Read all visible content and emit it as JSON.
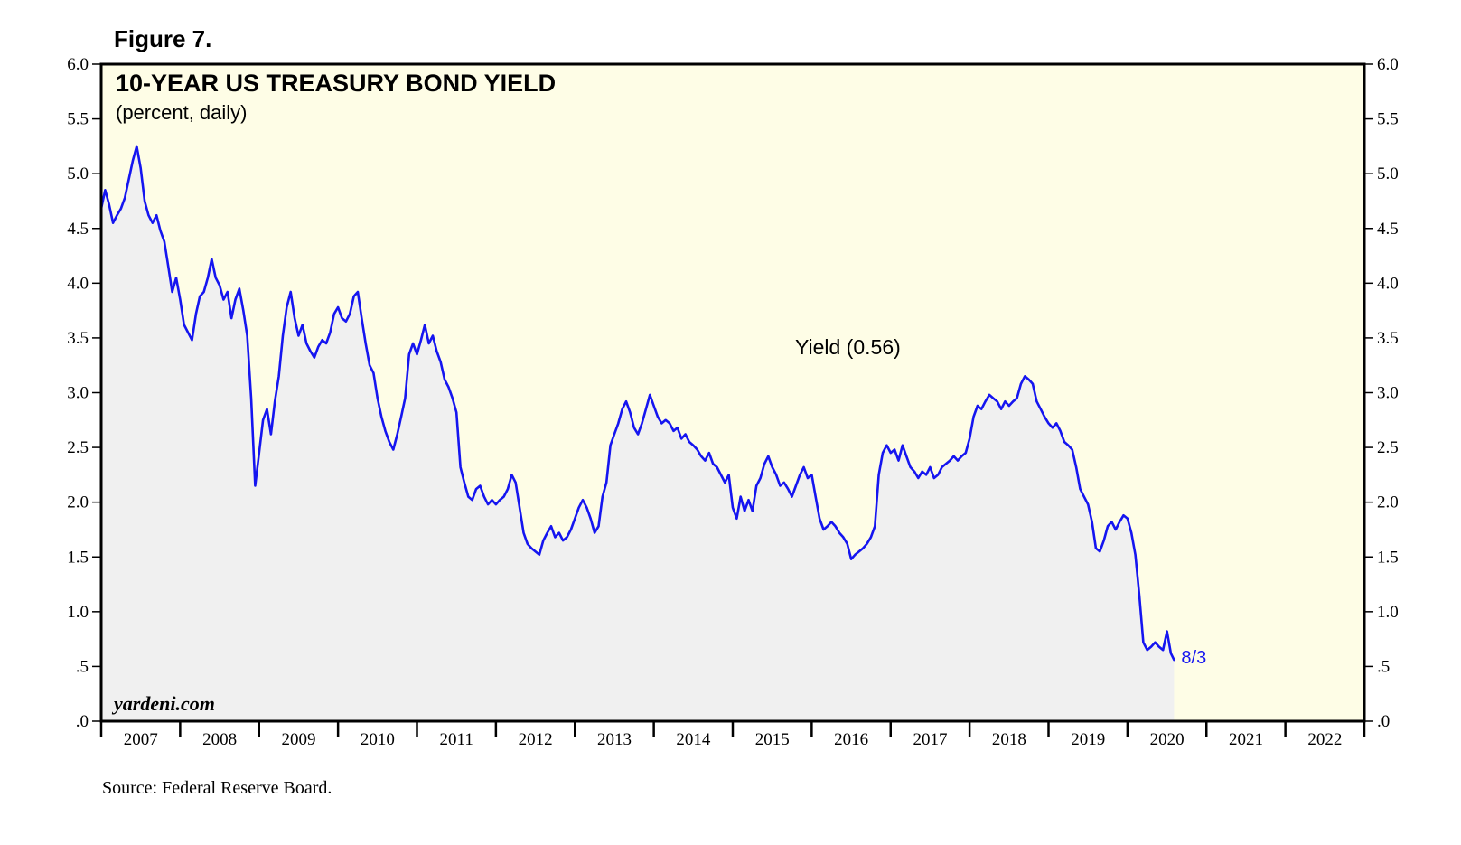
{
  "figure_label": "Figure 7.",
  "source": "Source: Federal Reserve Board.",
  "colors": {
    "plot_background": "#fefde6",
    "area_fill": "#f0f0f0",
    "line": "#1515f0",
    "frame": "#000000",
    "text": "#000000",
    "date_label": "#1515f0"
  },
  "chart_data": {
    "type": "line",
    "title": "10-YEAR US TREASURY BOND YIELD",
    "subtitle": "(percent, daily)",
    "watermark": "yardeni.com",
    "series_label": "Yield (0.56)",
    "end_label": "8/3",
    "ylim": [
      0,
      6
    ],
    "y_ticks": [
      ".0",
      ".5",
      "1.0",
      "1.5",
      "2.0",
      "2.5",
      "3.0",
      "3.5",
      "4.0",
      "4.5",
      "5.0",
      "5.5",
      "6.0"
    ],
    "x_range": [
      2007,
      2023
    ],
    "x_tick_labels": [
      "2007",
      "2008",
      "2009",
      "2010",
      "2011",
      "2012",
      "2013",
      "2014",
      "2015",
      "2016",
      "2017",
      "2018",
      "2019",
      "2020",
      "2021",
      "2022"
    ],
    "shaded": "area under line",
    "series": [
      {
        "name": "10-Year Treasury Yield",
        "x": [
          2007.0,
          2007.05,
          2007.1,
          2007.15,
          2007.2,
          2007.25,
          2007.3,
          2007.35,
          2007.4,
          2007.45,
          2007.5,
          2007.55,
          2007.6,
          2007.65,
          2007.7,
          2007.75,
          2007.8,
          2007.85,
          2007.9,
          2007.95,
          2008.0,
          2008.05,
          2008.1,
          2008.15,
          2008.2,
          2008.25,
          2008.3,
          2008.35,
          2008.4,
          2008.45,
          2008.5,
          2008.55,
          2008.6,
          2008.65,
          2008.7,
          2008.75,
          2008.8,
          2008.85,
          2008.9,
          2008.95,
          2009.0,
          2009.05,
          2009.1,
          2009.15,
          2009.2,
          2009.25,
          2009.3,
          2009.35,
          2009.4,
          2009.45,
          2009.5,
          2009.55,
          2009.6,
          2009.65,
          2009.7,
          2009.75,
          2009.8,
          2009.85,
          2009.9,
          2009.95,
          2010.0,
          2010.05,
          2010.1,
          2010.15,
          2010.2,
          2010.25,
          2010.3,
          2010.35,
          2010.4,
          2010.45,
          2010.5,
          2010.55,
          2010.6,
          2010.65,
          2010.7,
          2010.75,
          2010.8,
          2010.85,
          2010.9,
          2010.95,
          2011.0,
          2011.05,
          2011.1,
          2011.15,
          2011.2,
          2011.25,
          2011.3,
          2011.35,
          2011.4,
          2011.45,
          2011.5,
          2011.55,
          2011.6,
          2011.65,
          2011.7,
          2011.75,
          2011.8,
          2011.85,
          2011.9,
          2011.95,
          2012.0,
          2012.05,
          2012.1,
          2012.15,
          2012.2,
          2012.25,
          2012.3,
          2012.35,
          2012.4,
          2012.45,
          2012.5,
          2012.55,
          2012.6,
          2012.65,
          2012.7,
          2012.75,
          2012.8,
          2012.85,
          2012.9,
          2012.95,
          2013.0,
          2013.05,
          2013.1,
          2013.15,
          2013.2,
          2013.25,
          2013.3,
          2013.35,
          2013.4,
          2013.45,
          2013.5,
          2013.55,
          2013.6,
          2013.65,
          2013.7,
          2013.75,
          2013.8,
          2013.85,
          2013.9,
          2013.95,
          2014.0,
          2014.05,
          2014.1,
          2014.15,
          2014.2,
          2014.25,
          2014.3,
          2014.35,
          2014.4,
          2014.45,
          2014.5,
          2014.55,
          2014.6,
          2014.65,
          2014.7,
          2014.75,
          2014.8,
          2014.85,
          2014.9,
          2014.95,
          2015.0,
          2015.05,
          2015.1,
          2015.15,
          2015.2,
          2015.25,
          2015.3,
          2015.35,
          2015.4,
          2015.45,
          2015.5,
          2015.55,
          2015.6,
          2015.65,
          2015.7,
          2015.75,
          2015.8,
          2015.85,
          2015.9,
          2015.95,
          2016.0,
          2016.05,
          2016.1,
          2016.15,
          2016.2,
          2016.25,
          2016.3,
          2016.35,
          2016.4,
          2016.45,
          2016.5,
          2016.55,
          2016.6,
          2016.65,
          2016.7,
          2016.75,
          2016.8,
          2016.85,
          2016.9,
          2016.95,
          2017.0,
          2017.05,
          2017.1,
          2017.15,
          2017.2,
          2017.25,
          2017.3,
          2017.35,
          2017.4,
          2017.45,
          2017.5,
          2017.55,
          2017.6,
          2017.65,
          2017.7,
          2017.75,
          2017.8,
          2017.85,
          2017.9,
          2017.95,
          2018.0,
          2018.05,
          2018.1,
          2018.15,
          2018.2,
          2018.25,
          2018.3,
          2018.35,
          2018.4,
          2018.45,
          2018.5,
          2018.55,
          2018.6,
          2018.65,
          2018.7,
          2018.75,
          2018.8,
          2018.85,
          2018.9,
          2018.95,
          2019.0,
          2019.05,
          2019.1,
          2019.15,
          2019.2,
          2019.25,
          2019.3,
          2019.35,
          2019.4,
          2019.45,
          2019.5,
          2019.55,
          2019.6,
          2019.65,
          2019.7,
          2019.75,
          2019.8,
          2019.85,
          2019.9,
          2019.95,
          2020.0,
          2020.05,
          2020.1,
          2020.15,
          2020.2,
          2020.25,
          2020.3,
          2020.35,
          2020.4,
          2020.45,
          2020.5,
          2020.55,
          2020.59
        ],
        "values": [
          4.68,
          4.85,
          4.72,
          4.55,
          4.62,
          4.68,
          4.78,
          4.95,
          5.12,
          5.25,
          5.05,
          4.75,
          4.62,
          4.55,
          4.62,
          4.48,
          4.38,
          4.15,
          3.92,
          4.05,
          3.85,
          3.62,
          3.55,
          3.48,
          3.72,
          3.88,
          3.92,
          4.05,
          4.22,
          4.05,
          3.98,
          3.85,
          3.92,
          3.68,
          3.85,
          3.95,
          3.75,
          3.52,
          2.95,
          2.15,
          2.45,
          2.75,
          2.85,
          2.62,
          2.92,
          3.15,
          3.52,
          3.78,
          3.92,
          3.68,
          3.52,
          3.62,
          3.45,
          3.38,
          3.32,
          3.42,
          3.48,
          3.45,
          3.55,
          3.72,
          3.78,
          3.68,
          3.65,
          3.72,
          3.88,
          3.92,
          3.68,
          3.45,
          3.25,
          3.18,
          2.95,
          2.78,
          2.65,
          2.55,
          2.48,
          2.62,
          2.78,
          2.95,
          3.35,
          3.45,
          3.35,
          3.48,
          3.62,
          3.45,
          3.52,
          3.38,
          3.28,
          3.12,
          3.05,
          2.95,
          2.82,
          2.32,
          2.18,
          2.05,
          2.02,
          2.12,
          2.15,
          2.05,
          1.98,
          2.02,
          1.98,
          2.02,
          2.05,
          2.12,
          2.25,
          2.18,
          1.95,
          1.72,
          1.62,
          1.58,
          1.55,
          1.52,
          1.65,
          1.72,
          1.78,
          1.68,
          1.72,
          1.65,
          1.68,
          1.75,
          1.85,
          1.95,
          2.02,
          1.95,
          1.85,
          1.72,
          1.78,
          2.05,
          2.18,
          2.52,
          2.62,
          2.72,
          2.85,
          2.92,
          2.82,
          2.68,
          2.62,
          2.72,
          2.85,
          2.98,
          2.88,
          2.78,
          2.72,
          2.75,
          2.72,
          2.65,
          2.68,
          2.58,
          2.62,
          2.55,
          2.52,
          2.48,
          2.42,
          2.38,
          2.45,
          2.35,
          2.32,
          2.25,
          2.18,
          2.25,
          1.95,
          1.85,
          2.05,
          1.92,
          2.02,
          1.92,
          2.15,
          2.22,
          2.35,
          2.42,
          2.32,
          2.25,
          2.15,
          2.18,
          2.12,
          2.05,
          2.15,
          2.25,
          2.32,
          2.22,
          2.25,
          2.05,
          1.85,
          1.75,
          1.78,
          1.82,
          1.78,
          1.72,
          1.68,
          1.62,
          1.48,
          1.52,
          1.55,
          1.58,
          1.62,
          1.68,
          1.78,
          2.25,
          2.45,
          2.52,
          2.45,
          2.48,
          2.38,
          2.52,
          2.42,
          2.32,
          2.28,
          2.22,
          2.28,
          2.25,
          2.32,
          2.22,
          2.25,
          2.32,
          2.35,
          2.38,
          2.42,
          2.38,
          2.42,
          2.45,
          2.58,
          2.78,
          2.88,
          2.85,
          2.92,
          2.98,
          2.95,
          2.92,
          2.85,
          2.92,
          2.88,
          2.92,
          2.95,
          3.08,
          3.15,
          3.12,
          3.08,
          2.92,
          2.85,
          2.78,
          2.72,
          2.68,
          2.72,
          2.65,
          2.55,
          2.52,
          2.48,
          2.32,
          2.12,
          2.05,
          1.98,
          1.82,
          1.58,
          1.55,
          1.65,
          1.78,
          1.82,
          1.75,
          1.82,
          1.88,
          1.85,
          1.72,
          1.52,
          1.15,
          0.72,
          0.65,
          0.68,
          0.72,
          0.68,
          0.65,
          0.82,
          0.62,
          0.56
        ]
      }
    ]
  }
}
